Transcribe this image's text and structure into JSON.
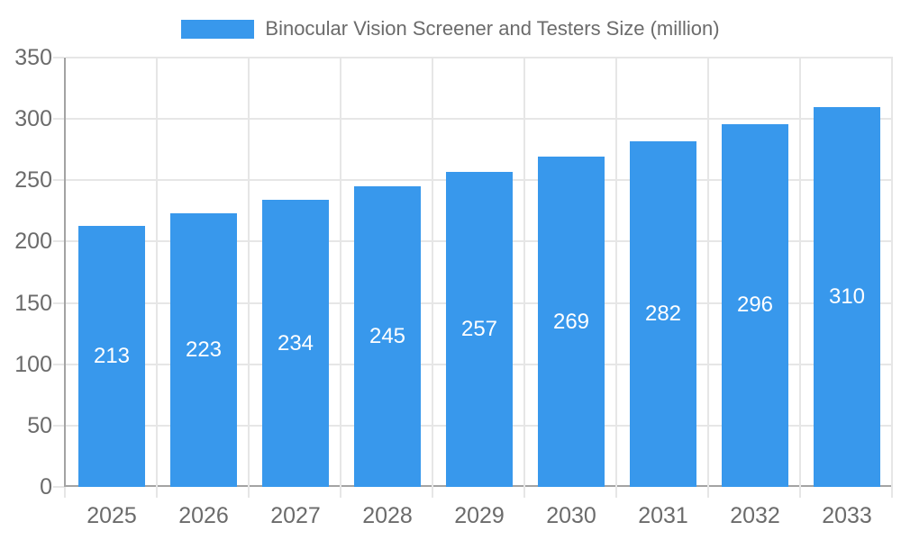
{
  "legend": {
    "label": "Binocular Vision Screener and Testers Size (million)"
  },
  "chart_data": {
    "type": "bar",
    "title": "Binocular Vision Screener and Testers Size (million)",
    "categories": [
      "2025",
      "2026",
      "2027",
      "2028",
      "2029",
      "2030",
      "2031",
      "2032",
      "2033"
    ],
    "values": [
      213,
      223,
      234,
      245,
      257,
      269,
      282,
      296,
      310
    ],
    "xlabel": "",
    "ylabel": "",
    "ylim": [
      0,
      350
    ],
    "ytick_step": 50,
    "yticks": [
      0,
      50,
      100,
      150,
      200,
      250,
      300,
      350
    ],
    "grid": true,
    "legend_position": "top",
    "value_labels": "inside-center",
    "colors": {
      "bar": "#3898ec",
      "bar_label": "#ffffff",
      "axis_line": "#a3a3a3",
      "gridline": "#e6e6e6",
      "tick_text": "#6b6b6b",
      "legend_text": "#6b6b6b",
      "background": "#ffffff"
    }
  }
}
